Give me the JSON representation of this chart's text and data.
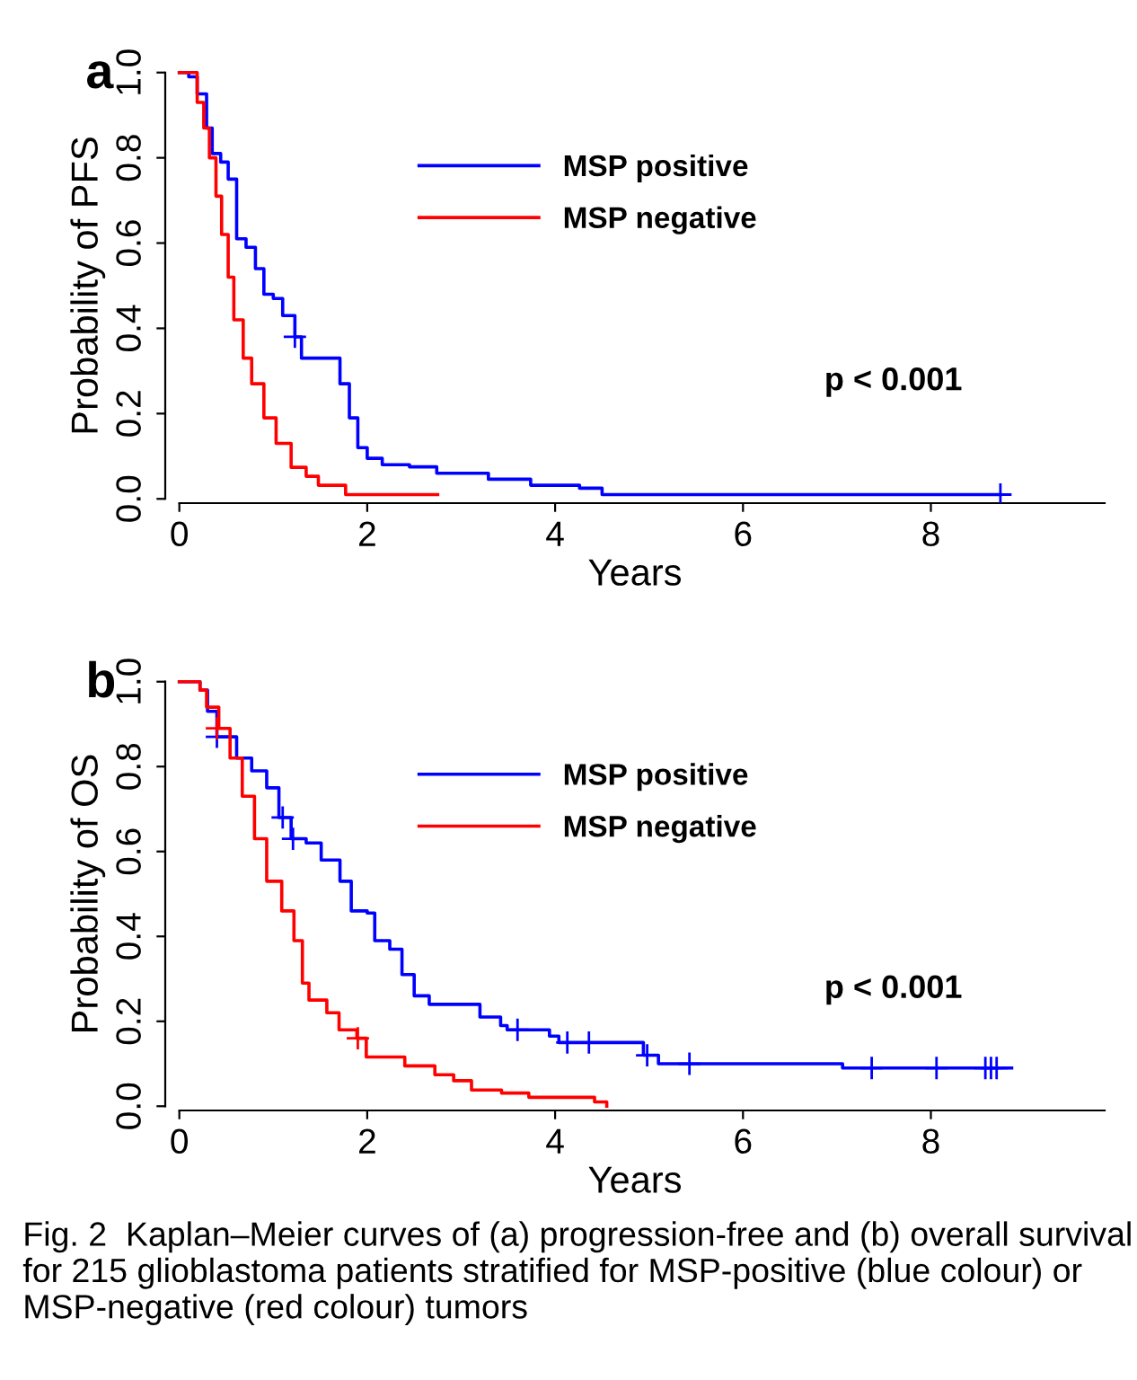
{
  "chart_data": [
    {
      "type": "step",
      "xlabel": "Years",
      "ylabel": "Probability of PFS",
      "annotations": [
        "a",
        "p < 0.001"
      ],
      "xlim": [
        -0.15,
        9.85
      ],
      "ylim": [
        -0.01,
        1.01
      ],
      "xticks": [
        0,
        2,
        4,
        6,
        8
      ],
      "yticks": [
        {
          "value": 0,
          "label": "0.0"
        },
        {
          "value": 0.2,
          "label": "0.2"
        },
        {
          "value": 0.4,
          "label": "0.4"
        },
        {
          "value": 0.6,
          "label": "0.6"
        },
        {
          "value": 0.8,
          "label": "0.8"
        },
        {
          "value": 1,
          "label": "1.0"
        }
      ],
      "legend": "center",
      "grid": false,
      "line_style": "solid",
      "series": [
        {
          "name": "MSP positive",
          "color": "#0000ff",
          "x": [
            0,
            0.1,
            0.19,
            0.29,
            0.35,
            0.44,
            0.52,
            0.61,
            0.71,
            0.81,
            0.9,
            1.0,
            1.1,
            1.23,
            1.3,
            1.61,
            1.71,
            1.81,
            1.9,
            2.0,
            2.16,
            2.45,
            2.74,
            3.29,
            3.74,
            4.26,
            4.5,
            8.74
          ],
          "values": [
            1.0,
            0.99,
            0.95,
            0.87,
            0.81,
            0.79,
            0.75,
            0.61,
            0.59,
            0.54,
            0.48,
            0.47,
            0.43,
            0.38,
            0.33,
            0.33,
            0.27,
            0.19,
            0.12,
            0.095,
            0.08,
            0.075,
            0.06,
            0.046,
            0.032,
            0.025,
            0.01,
            0.01
          ]
        },
        {
          "name": "MSP negative",
          "color": "#ff0000",
          "x": [
            0,
            0.12,
            0.19,
            0.26,
            0.32,
            0.39,
            0.45,
            0.52,
            0.58,
            0.68,
            0.77,
            0.9,
            1.03,
            1.19,
            1.35,
            1.48,
            1.77,
            2.75
          ],
          "values": [
            1.0,
            1.0,
            0.93,
            0.87,
            0.8,
            0.71,
            0.62,
            0.52,
            0.42,
            0.33,
            0.27,
            0.19,
            0.13,
            0.074,
            0.053,
            0.032,
            0.01,
            0.01
          ]
        },
        {
          "type": "scatter",
          "marker": "cross",
          "color": "#0000ff",
          "x": [
            1.23,
            8.74
          ],
          "values": [
            0.38,
            0.01
          ]
        }
      ]
    },
    {
      "type": "step",
      "xlabel": "Years",
      "ylabel": "Probability of OS",
      "annotations": [
        "b",
        "p < 0.001",
        "Fig. 2  Kaplan–Meier curves of (a) progression-free and (b) overall survival for 215 glioblastoma patients stratified for MSP-positive (blue colour) or MSP-negative (red colour) tumors"
      ],
      "xlim": [
        -0.15,
        9.85
      ],
      "ylim": [
        -0.01,
        1.01
      ],
      "xticks": [
        0,
        2,
        4,
        6,
        8
      ],
      "yticks": [
        {
          "value": 0,
          "label": "0.0"
        },
        {
          "value": 0.2,
          "label": "0.2"
        },
        {
          "value": 0.4,
          "label": "0.4"
        },
        {
          "value": 0.6,
          "label": "0.6"
        },
        {
          "value": 0.8,
          "label": "0.8"
        },
        {
          "value": 1,
          "label": "1.0"
        }
      ],
      "legend": "center",
      "grid": false,
      "line_style": "solid",
      "series": [
        {
          "name": "MSP positive",
          "color": "#0000ff",
          "x": [
            0,
            0.22,
            0.3,
            0.4,
            0.61,
            0.77,
            0.93,
            1.06,
            1.19,
            1.35,
            1.51,
            1.71,
            1.83,
            2.0,
            2.08,
            2.24,
            2.37,
            2.5,
            2.66,
            3.2,
            3.42,
            3.49,
            3.94,
            4.04,
            4.94,
            5.1,
            7.06,
            8.86
          ],
          "values": [
            1.0,
            0.98,
            0.93,
            0.87,
            0.82,
            0.79,
            0.75,
            0.68,
            0.63,
            0.62,
            0.58,
            0.53,
            0.46,
            0.455,
            0.39,
            0.37,
            0.31,
            0.26,
            0.24,
            0.21,
            0.19,
            0.18,
            0.165,
            0.15,
            0.12,
            0.1,
            0.09,
            0.09
          ]
        },
        {
          "name": "MSP negative",
          "color": "#ff0000",
          "x": [
            0,
            0.22,
            0.29,
            0.42,
            0.54,
            0.67,
            0.8,
            0.93,
            1.09,
            1.22,
            1.31,
            1.38,
            1.57,
            1.7,
            1.89,
            1.99,
            2.4,
            2.72,
            2.92,
            3.11,
            3.43,
            3.72,
            4.42,
            4.55
          ],
          "values": [
            1.0,
            0.98,
            0.94,
            0.89,
            0.82,
            0.73,
            0.63,
            0.53,
            0.46,
            0.39,
            0.29,
            0.25,
            0.22,
            0.18,
            0.16,
            0.116,
            0.095,
            0.074,
            0.06,
            0.038,
            0.031,
            0.021,
            0.01,
            0.0
          ]
        },
        {
          "type": "scatter",
          "marker": "cross",
          "color": "#0000ff",
          "x": [
            0.4,
            1.1,
            1.21,
            3.6,
            4.13,
            4.36,
            4.98,
            5.43,
            7.37,
            8.06,
            8.58,
            8.64,
            8.7
          ],
          "values": [
            0.87,
            0.68,
            0.63,
            0.18,
            0.15,
            0.15,
            0.12,
            0.1,
            0.09,
            0.09,
            0.09,
            0.09,
            0.09
          ]
        },
        {
          "type": "scatter",
          "marker": "cross",
          "color": "#ff0000",
          "x": [
            0.4,
            1.9
          ],
          "values": [
            0.89,
            0.16
          ]
        }
      ]
    }
  ]
}
